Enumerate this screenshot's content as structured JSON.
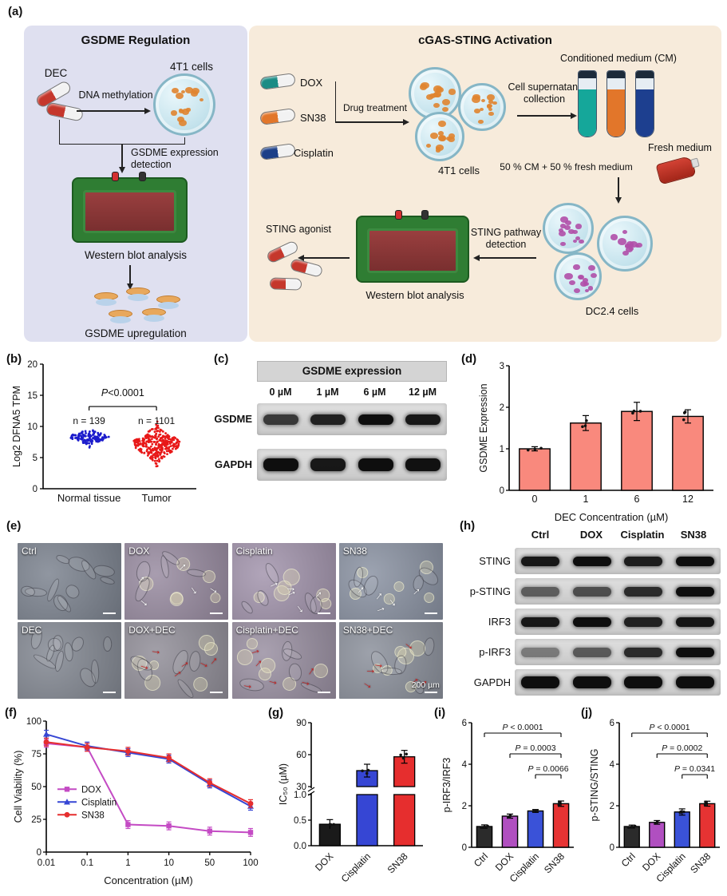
{
  "panels": {
    "a": {
      "label": "(a)",
      "gsdme_box": {
        "title": "GSDME Regulation",
        "dec": "DEC",
        "dna_methylation": "DNA methylation",
        "cells": "4T1 cells",
        "detection": "GSDME expression detection",
        "western_blot": "Western blot analysis",
        "upregulation": "GSDME upregulation"
      },
      "sting_box": {
        "title": "cGAS-STING Activation",
        "drugs": [
          "DOX",
          "SN38",
          "Cisplatin"
        ],
        "drug_treatment": "Drug treatment",
        "cells_4t1": "4T1 cells",
        "supernatant": "Cell supernatant collection",
        "conditioned_medium": "Conditioned medium (CM)",
        "fresh_medium": "Fresh medium",
        "mix": "50 % CM + 50 % fresh medium",
        "dc_cells": "DC2.4 cells",
        "sting_detection": "STING pathway detection",
        "western_blot": "Western blot analysis",
        "sting_agonist": "STING agonist"
      }
    },
    "b": {
      "label": "(b)"
    },
    "c": {
      "label": "(c)",
      "title": "GSDME expression",
      "lanes": [
        "0 µM",
        "1 µM",
        "6 µM",
        "12 µM"
      ],
      "rows": [
        {
          "name": "GSDME",
          "bands": [
            0.78,
            0.9,
            1,
            0.95
          ]
        },
        {
          "name": "GAPDH",
          "bands": [
            1,
            0.95,
            1,
            0.98
          ]
        }
      ]
    },
    "d": {
      "label": "(d)"
    },
    "e": {
      "label": "(e)",
      "scale_bar": "200 µm",
      "tiles": [
        {
          "label": "Ctrl",
          "arrows": "none"
        },
        {
          "label": "DOX",
          "arrows": "white"
        },
        {
          "label": "Cisplatin",
          "arrows": "white"
        },
        {
          "label": "SN38",
          "arrows": "white"
        },
        {
          "label": "DEC",
          "arrows": "none"
        },
        {
          "label": "DOX+DEC",
          "arrows": "red"
        },
        {
          "label": "Cisplatin+DEC",
          "arrows": "red"
        },
        {
          "label": "SN38+DEC",
          "arrows": "red",
          "has_scale_label": true
        }
      ]
    },
    "f": {
      "label": "(f)"
    },
    "g": {
      "label": "(g)"
    },
    "h": {
      "label": "(h)",
      "lanes": [
        "Ctrl",
        "DOX",
        "Cisplatin",
        "SN38"
      ],
      "rows": [
        {
          "name": "STING",
          "bands": [
            0.95,
            1,
            0.92,
            1
          ]
        },
        {
          "name": "p-STING",
          "bands": [
            0.6,
            0.68,
            0.85,
            1
          ]
        },
        {
          "name": "IRF3",
          "bands": [
            0.95,
            1,
            0.9,
            0.96
          ]
        },
        {
          "name": "p-IRF3",
          "bands": [
            0.45,
            0.62,
            0.85,
            1
          ]
        },
        {
          "name": "GAPDH",
          "bands": [
            1,
            1,
            1,
            1
          ]
        }
      ]
    },
    "i": {
      "label": "(i)"
    },
    "j": {
      "label": "(j)"
    }
  },
  "chart_data": [
    {
      "panel": "b",
      "type": "scatter",
      "ylabel": "Log2 DFNA5 TPM",
      "ylim": [
        0,
        20
      ],
      "yticks": [
        0,
        5,
        10,
        15,
        20
      ],
      "pvalue": "P<0.0001",
      "groups": [
        {
          "label": "Normal tissue",
          "n_label": "n = 139",
          "color": "#1c1ccc",
          "center": 8.3,
          "spread": 0.55,
          "points_drawn": 139
        },
        {
          "label": "Tumor",
          "n_label": "n = 1101",
          "color": "#e81818",
          "center": 7.2,
          "spread": 1.25,
          "points_drawn": 330
        }
      ]
    },
    {
      "panel": "d",
      "type": "bar",
      "categories": [
        "0",
        "1",
        "6",
        "12"
      ],
      "values": [
        1.0,
        1.62,
        1.9,
        1.78
      ],
      "errors": [
        0.05,
        0.18,
        0.22,
        0.16
      ],
      "bar_color": "#f9897d",
      "ylabel": "GSDME Expression",
      "xlabel": "DEC Concentration (µM)",
      "ylim": [
        0,
        3
      ],
      "yticks": [
        0,
        1,
        2,
        3
      ]
    },
    {
      "panel": "f",
      "type": "line",
      "x_labels": [
        "0.01",
        "0.1",
        "1",
        "10",
        "50",
        "100"
      ],
      "series": [
        {
          "name": "DOX",
          "color": "#c44bc4",
          "marker": "square",
          "values": [
            83,
            80,
            21,
            20,
            16,
            15
          ]
        },
        {
          "name": "Cisplatin",
          "color": "#3646d4",
          "marker": "triangle",
          "values": [
            90,
            81,
            76,
            71,
            52,
            35
          ]
        },
        {
          "name": "SN38",
          "color": "#e62e2e",
          "marker": "circle",
          "values": [
            84,
            80,
            77,
            72,
            53,
            37
          ]
        }
      ],
      "ylabel": "Cell Viability (%)",
      "xlabel": "Concentration (µM)",
      "ylim": [
        0,
        100
      ],
      "yticks": [
        0,
        25,
        50,
        75,
        100
      ]
    },
    {
      "panel": "g",
      "type": "bar-broken-axis",
      "categories": [
        "DOX",
        "Cisplatin",
        "SN38"
      ],
      "values": [
        0.42,
        45,
        58
      ],
      "errors": [
        0.09,
        6,
        6
      ],
      "colors": [
        "#1a1a1a",
        "#3646d4",
        "#e62e2e"
      ],
      "ylabel": "IC₅₀ (µM)",
      "lower_ylim": [
        0,
        1.0
      ],
      "lower_yticks": [
        0,
        0.5,
        1.0
      ],
      "upper_ylim": [
        30,
        90
      ],
      "upper_yticks": [
        30,
        60,
        90
      ]
    },
    {
      "panel": "i",
      "type": "bar",
      "categories": [
        "Ctrl",
        "DOX",
        "Cisplatin",
        "SN38"
      ],
      "values": [
        1.0,
        1.5,
        1.75,
        2.1
      ],
      "errors": [
        0.08,
        0.1,
        0.07,
        0.13
      ],
      "colors": [
        "#2b2b2b",
        "#b04fc0",
        "#3a52d8",
        "#e63333"
      ],
      "ylabel": "p-IRF3/IRF3",
      "ylim": [
        0,
        6
      ],
      "yticks": [
        0,
        2,
        4,
        6
      ],
      "significance": [
        {
          "from": 0,
          "to": 3,
          "label": "P < 0.0001"
        },
        {
          "from": 1,
          "to": 3,
          "label": "P = 0.0003"
        },
        {
          "from": 2,
          "to": 3,
          "label": "P = 0.0066"
        }
      ]
    },
    {
      "panel": "j",
      "type": "bar",
      "categories": [
        "Ctrl",
        "DOX",
        "Cisplatin",
        "SN38"
      ],
      "values": [
        1.0,
        1.2,
        1.7,
        2.1
      ],
      "errors": [
        0.07,
        0.09,
        0.15,
        0.12
      ],
      "colors": [
        "#2b2b2b",
        "#b04fc0",
        "#3a52d8",
        "#e63333"
      ],
      "ylabel": "p-STING/STING",
      "ylim": [
        0,
        6
      ],
      "yticks": [
        0,
        2,
        4,
        6
      ],
      "significance": [
        {
          "from": 0,
          "to": 3,
          "label": "P < 0.0001"
        },
        {
          "from": 1,
          "to": 3,
          "label": "P = 0.0002"
        },
        {
          "from": 2,
          "to": 3,
          "label": "P = 0.0341"
        }
      ]
    }
  ]
}
